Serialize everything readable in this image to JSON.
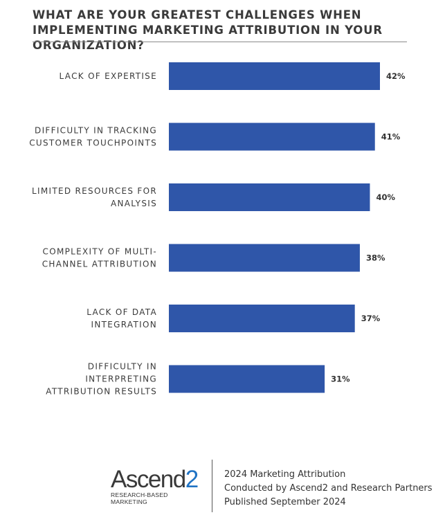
{
  "chart_data": {
    "type": "bar",
    "orientation": "horizontal",
    "title": "WHAT ARE YOUR GREATEST CHALLENGES WHEN IMPLEMENTING MARKETING ATTRIBUTION IN YOUR ORGANIZATION?",
    "categories": [
      [
        "LACK OF EXPERTISE"
      ],
      [
        "DIFFICULTY IN TRACKING",
        "CUSTOMER TOUCHPOINTS"
      ],
      [
        "LIMITED RESOURCES FOR",
        "ANALYSIS"
      ],
      [
        "COMPLEXITY OF MULTI-",
        "CHANNEL ATTRIBUTION"
      ],
      [
        "LACK OF DATA",
        "INTEGRATION"
      ],
      [
        "DIFFICULTY IN",
        "INTERPRETING",
        "ATTRIBUTION RESULTS"
      ]
    ],
    "values": [
      42,
      41,
      40,
      38,
      37,
      31
    ],
    "value_labels": [
      "42%",
      "41%",
      "40%",
      "38%",
      "37%",
      "31%"
    ],
    "bar_color": "#2f56a9",
    "grid": false,
    "legend": "none"
  },
  "footer": {
    "logo_word": "Ascend",
    "logo_digit": "2",
    "logo_tagline": "RESEARCH-BASED MARKETING",
    "lines": [
      "2024 Marketing Attribution",
      "Conducted by Ascend2 and Research Partners",
      "Published September 2024"
    ]
  }
}
